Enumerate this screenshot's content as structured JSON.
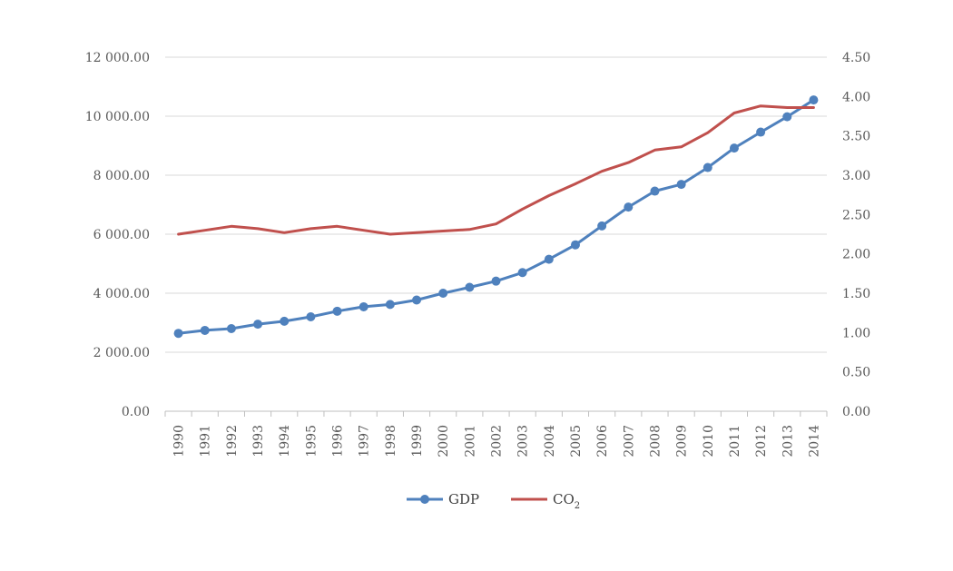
{
  "chart_data": {
    "type": "line",
    "categories": [
      "1990",
      "1991",
      "1992",
      "1993",
      "1994",
      "1995",
      "1996",
      "1997",
      "1998",
      "1999",
      "2000",
      "2001",
      "2002",
      "2003",
      "2004",
      "2005",
      "2006",
      "2007",
      "2008",
      "2009",
      "2010",
      "2011",
      "2012",
      "2013",
      "2014"
    ],
    "series": [
      {
        "name": "GDP",
        "axis": "left",
        "color": "#4f81bd",
        "markers": true,
        "values": [
          2640,
          2740,
          2800,
          2950,
          3050,
          3200,
          3390,
          3540,
          3620,
          3770,
          4000,
          4200,
          4410,
          4700,
          5150,
          5640,
          6280,
          6920,
          7460,
          7690,
          8260,
          8920,
          9460,
          9980,
          10550
        ]
      },
      {
        "name": "CO2",
        "name_main": "CO",
        "name_sub": "2",
        "axis": "right",
        "color": "#c0504d",
        "markers": false,
        "values": [
          2.25,
          2.3,
          2.35,
          2.32,
          2.27,
          2.32,
          2.35,
          2.3,
          2.25,
          2.27,
          2.29,
          2.31,
          2.38,
          2.57,
          2.74,
          2.89,
          3.05,
          3.16,
          3.32,
          3.36,
          3.54,
          3.79,
          3.88,
          3.86,
          3.86
        ]
      }
    ],
    "y_left": {
      "ylim": [
        0,
        12000
      ],
      "ticks": [
        0,
        2000,
        4000,
        6000,
        8000,
        10000,
        12000
      ],
      "tick_labels": [
        "0.00",
        "2 000.00",
        "4 000.00",
        "6 000.00",
        "8 000.00",
        "10 000.00",
        "12 000.00"
      ]
    },
    "y_right": {
      "ylim": [
        0,
        4.5
      ],
      "ticks": [
        0,
        0.5,
        1,
        1.5,
        2,
        2.5,
        3,
        3.5,
        4,
        4.5
      ],
      "tick_labels": [
        "0.00",
        "0.50",
        "1.00",
        "1.50",
        "2.00",
        "2.50",
        "3.00",
        "3.50",
        "4.00",
        "4.50"
      ]
    },
    "grid": true,
    "legend_position": "bottom"
  }
}
